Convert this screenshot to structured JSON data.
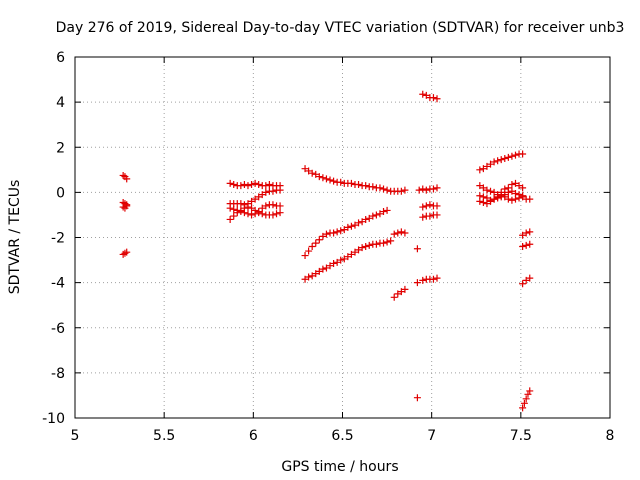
{
  "chart_data": {
    "type": "scatter",
    "title": "Day 276 of 2019, Sidereal Day-to-day VTEC variation (SDTVAR) for receiver unb3",
    "xlabel": "GPS time / hours",
    "ylabel": "SDTVAR / TECUs",
    "xlim": [
      5,
      8
    ],
    "ylim": [
      -10,
      6
    ],
    "xticks": [
      5,
      5.5,
      6,
      6.5,
      7,
      7.5,
      8
    ],
    "yticks": [
      -10,
      -8,
      -6,
      -4,
      -2,
      0,
      2,
      4,
      6
    ],
    "xtick_labels": [
      "5",
      "5.5",
      "6",
      "6.5",
      "7",
      "7.5",
      "8"
    ],
    "ytick_labels": [
      "-10",
      "-8",
      "-6",
      "-4",
      "-2",
      "0",
      "2",
      "4",
      "6"
    ],
    "grid": true,
    "marker": "+",
    "color": "#e00000",
    "series": [
      {
        "name": "cluster-5.3",
        "points": [
          [
            5.27,
            0.75
          ],
          [
            5.28,
            0.7
          ],
          [
            5.29,
            0.6
          ],
          [
            5.27,
            -0.45
          ],
          [
            5.28,
            -0.5
          ],
          [
            5.29,
            -0.55
          ],
          [
            5.27,
            -0.65
          ],
          [
            5.28,
            -0.7
          ],
          [
            5.29,
            -0.6
          ],
          [
            5.27,
            -2.75
          ],
          [
            5.28,
            -2.7
          ],
          [
            5.29,
            -2.65
          ]
        ]
      },
      {
        "name": "arc-6.0-top",
        "points": [
          [
            5.87,
            0.4
          ],
          [
            5.89,
            0.35
          ],
          [
            5.91,
            0.3
          ],
          [
            5.93,
            0.3
          ],
          [
            5.95,
            0.35
          ],
          [
            5.97,
            0.3
          ],
          [
            5.99,
            0.35
          ],
          [
            6.01,
            0.4
          ],
          [
            6.03,
            0.35
          ],
          [
            6.05,
            0.3
          ],
          [
            6.07,
            0.3
          ],
          [
            6.09,
            0.35
          ],
          [
            6.11,
            0.3
          ],
          [
            6.13,
            0.3
          ],
          [
            6.15,
            0.3
          ]
        ]
      },
      {
        "name": "arc-6.0-mid",
        "points": [
          [
            5.87,
            -0.5
          ],
          [
            5.89,
            -0.5
          ],
          [
            5.91,
            -0.5
          ],
          [
            5.93,
            -0.5
          ],
          [
            5.95,
            -0.55
          ],
          [
            5.97,
            -0.5
          ],
          [
            5.99,
            -0.4
          ],
          [
            6.01,
            -0.3
          ],
          [
            6.03,
            -0.2
          ],
          [
            6.05,
            -0.1
          ],
          [
            6.07,
            0.0
          ],
          [
            6.09,
            0.05
          ],
          [
            6.11,
            0.05
          ],
          [
            6.13,
            0.1
          ],
          [
            6.15,
            0.1
          ]
        ]
      },
      {
        "name": "arc-6.0-low",
        "points": [
          [
            5.87,
            -0.7
          ],
          [
            5.89,
            -0.75
          ],
          [
            5.91,
            -0.8
          ],
          [
            5.93,
            -0.85
          ],
          [
            5.95,
            -0.9
          ],
          [
            5.97,
            -0.95
          ],
          [
            5.99,
            -1.0
          ],
          [
            6.01,
            -0.95
          ],
          [
            6.03,
            -0.85
          ],
          [
            6.05,
            -0.7
          ],
          [
            6.07,
            -0.6
          ],
          [
            6.09,
            -0.55
          ],
          [
            6.11,
            -0.55
          ],
          [
            6.13,
            -0.6
          ],
          [
            6.15,
            -0.6
          ]
        ]
      },
      {
        "name": "arc-6.0-cross",
        "points": [
          [
            5.87,
            -1.2
          ],
          [
            5.89,
            -1.05
          ],
          [
            5.91,
            -0.9
          ],
          [
            5.93,
            -0.8
          ],
          [
            5.95,
            -0.7
          ],
          [
            5.97,
            -0.65
          ],
          [
            5.99,
            -0.7
          ],
          [
            6.01,
            -0.8
          ],
          [
            6.03,
            -0.9
          ],
          [
            6.05,
            -0.95
          ],
          [
            6.07,
            -1.0
          ],
          [
            6.09,
            -1.0
          ],
          [
            6.11,
            -1.0
          ],
          [
            6.13,
            -0.95
          ],
          [
            6.15,
            -0.9
          ]
        ]
      },
      {
        "name": "arc-upper",
        "points": [
          [
            6.29,
            1.05
          ],
          [
            6.31,
            0.95
          ],
          [
            6.33,
            0.85
          ],
          [
            6.35,
            0.8
          ],
          [
            6.37,
            0.7
          ],
          [
            6.39,
            0.65
          ],
          [
            6.41,
            0.6
          ],
          [
            6.43,
            0.55
          ],
          [
            6.45,
            0.5
          ],
          [
            6.47,
            0.45
          ],
          [
            6.49,
            0.45
          ],
          [
            6.51,
            0.4
          ],
          [
            6.53,
            0.4
          ],
          [
            6.55,
            0.4
          ],
          [
            6.57,
            0.35
          ],
          [
            6.59,
            0.35
          ],
          [
            6.61,
            0.3
          ],
          [
            6.63,
            0.3
          ],
          [
            6.65,
            0.25
          ],
          [
            6.67,
            0.25
          ],
          [
            6.69,
            0.2
          ],
          [
            6.71,
            0.2
          ],
          [
            6.73,
            0.15
          ],
          [
            6.75,
            0.1
          ],
          [
            6.77,
            0.05
          ],
          [
            6.79,
            0.05
          ],
          [
            6.81,
            0.05
          ],
          [
            6.83,
            0.05
          ],
          [
            6.85,
            0.1
          ]
        ]
      },
      {
        "name": "arc-middle",
        "points": [
          [
            6.29,
            -2.8
          ],
          [
            6.31,
            -2.6
          ],
          [
            6.33,
            -2.4
          ],
          [
            6.35,
            -2.25
          ],
          [
            6.37,
            -2.1
          ],
          [
            6.39,
            -1.95
          ],
          [
            6.41,
            -1.85
          ],
          [
            6.43,
            -1.8
          ],
          [
            6.45,
            -1.8
          ],
          [
            6.47,
            -1.75
          ],
          [
            6.49,
            -1.7
          ],
          [
            6.51,
            -1.65
          ],
          [
            6.53,
            -1.55
          ],
          [
            6.55,
            -1.5
          ],
          [
            6.57,
            -1.45
          ],
          [
            6.59,
            -1.35
          ],
          [
            6.61,
            -1.3
          ],
          [
            6.63,
            -1.2
          ],
          [
            6.65,
            -1.15
          ],
          [
            6.67,
            -1.05
          ],
          [
            6.69,
            -1.0
          ],
          [
            6.71,
            -0.95
          ],
          [
            6.73,
            -0.85
          ],
          [
            6.75,
            -0.8
          ],
          [
            6.79,
            -1.85
          ],
          [
            6.81,
            -1.8
          ],
          [
            6.83,
            -1.75
          ],
          [
            6.85,
            -1.8
          ]
        ]
      },
      {
        "name": "arc-lower",
        "points": [
          [
            6.29,
            -3.85
          ],
          [
            6.31,
            -3.75
          ],
          [
            6.33,
            -3.7
          ],
          [
            6.35,
            -3.6
          ],
          [
            6.37,
            -3.5
          ],
          [
            6.39,
            -3.4
          ],
          [
            6.41,
            -3.35
          ],
          [
            6.43,
            -3.25
          ],
          [
            6.45,
            -3.15
          ],
          [
            6.47,
            -3.1
          ],
          [
            6.49,
            -3.0
          ],
          [
            6.51,
            -2.95
          ],
          [
            6.53,
            -2.85
          ],
          [
            6.55,
            -2.75
          ],
          [
            6.57,
            -2.65
          ],
          [
            6.59,
            -2.55
          ],
          [
            6.61,
            -2.45
          ],
          [
            6.63,
            -2.4
          ],
          [
            6.65,
            -2.35
          ],
          [
            6.67,
            -2.3
          ],
          [
            6.69,
            -2.3
          ],
          [
            6.71,
            -2.25
          ],
          [
            6.73,
            -2.25
          ],
          [
            6.75,
            -2.2
          ],
          [
            6.77,
            -2.15
          ],
          [
            6.79,
            -4.65
          ],
          [
            6.81,
            -4.5
          ],
          [
            6.83,
            -4.4
          ],
          [
            6.85,
            -4.3
          ]
        ]
      },
      {
        "name": "cluster-7.0",
        "points": [
          [
            6.92,
            -9.1
          ],
          [
            6.92,
            -4.0
          ],
          [
            6.92,
            -2.5
          ],
          [
            6.93,
            0.1
          ],
          [
            6.95,
            4.35
          ],
          [
            6.97,
            4.3
          ],
          [
            6.99,
            4.2
          ],
          [
            7.01,
            4.2
          ],
          [
            7.03,
            4.15
          ],
          [
            6.95,
            0.15
          ],
          [
            6.97,
            0.1
          ],
          [
            6.99,
            0.15
          ],
          [
            7.01,
            0.15
          ],
          [
            7.03,
            0.2
          ],
          [
            6.95,
            -0.65
          ],
          [
            6.97,
            -0.6
          ],
          [
            6.99,
            -0.55
          ],
          [
            7.01,
            -0.6
          ],
          [
            7.03,
            -0.6
          ],
          [
            6.95,
            -1.1
          ],
          [
            6.97,
            -1.05
          ],
          [
            6.99,
            -1.05
          ],
          [
            7.01,
            -1.0
          ],
          [
            7.03,
            -1.0
          ],
          [
            6.95,
            -3.9
          ],
          [
            6.97,
            -3.85
          ],
          [
            6.99,
            -3.85
          ],
          [
            7.01,
            -3.85
          ],
          [
            7.03,
            -3.8
          ]
        ]
      },
      {
        "name": "arc-7.4-rise",
        "points": [
          [
            7.27,
            1.0
          ],
          [
            7.29,
            1.05
          ],
          [
            7.31,
            1.15
          ],
          [
            7.33,
            1.25
          ],
          [
            7.35,
            1.35
          ],
          [
            7.37,
            1.4
          ],
          [
            7.39,
            1.45
          ],
          [
            7.41,
            1.5
          ],
          [
            7.43,
            1.55
          ],
          [
            7.45,
            1.6
          ],
          [
            7.47,
            1.65
          ],
          [
            7.49,
            1.7
          ],
          [
            7.51,
            1.7
          ]
        ]
      },
      {
        "name": "arc-7.4-band",
        "points": [
          [
            7.27,
            0.3
          ],
          [
            7.29,
            0.2
          ],
          [
            7.31,
            0.1
          ],
          [
            7.33,
            0.05
          ],
          [
            7.35,
            0.0
          ],
          [
            7.37,
            -0.1
          ],
          [
            7.39,
            0.0
          ],
          [
            7.41,
            0.15
          ],
          [
            7.43,
            0.2
          ],
          [
            7.45,
            0.35
          ],
          [
            7.47,
            0.4
          ],
          [
            7.49,
            0.3
          ],
          [
            7.51,
            0.2
          ],
          [
            7.27,
            -0.15
          ],
          [
            7.29,
            -0.2
          ],
          [
            7.31,
            -0.25
          ],
          [
            7.33,
            -0.35
          ],
          [
            7.35,
            -0.3
          ],
          [
            7.37,
            -0.25
          ],
          [
            7.39,
            -0.2
          ],
          [
            7.41,
            -0.1
          ],
          [
            7.43,
            0.0
          ],
          [
            7.45,
            0.05
          ],
          [
            7.47,
            -0.05
          ],
          [
            7.49,
            -0.1
          ],
          [
            7.51,
            -0.15
          ],
          [
            7.27,
            -0.4
          ],
          [
            7.29,
            -0.45
          ],
          [
            7.31,
            -0.5
          ],
          [
            7.33,
            -0.4
          ],
          [
            7.35,
            -0.3
          ],
          [
            7.37,
            -0.2
          ],
          [
            7.39,
            -0.15
          ],
          [
            7.41,
            -0.2
          ],
          [
            7.43,
            -0.3
          ],
          [
            7.45,
            -0.35
          ],
          [
            7.47,
            -0.3
          ],
          [
            7.49,
            -0.25
          ],
          [
            7.51,
            -0.2
          ],
          [
            7.53,
            -0.3
          ],
          [
            7.55,
            -0.3
          ]
        ]
      },
      {
        "name": "cluster-7.55",
        "points": [
          [
            7.51,
            -1.9
          ],
          [
            7.53,
            -1.8
          ],
          [
            7.55,
            -1.75
          ],
          [
            7.51,
            -2.4
          ],
          [
            7.53,
            -2.35
          ],
          [
            7.55,
            -2.3
          ],
          [
            7.51,
            -4.05
          ],
          [
            7.53,
            -3.9
          ],
          [
            7.55,
            -3.8
          ],
          [
            7.51,
            -9.55
          ],
          [
            7.52,
            -9.35
          ],
          [
            7.53,
            -9.15
          ],
          [
            7.54,
            -8.95
          ],
          [
            7.55,
            -8.8
          ]
        ]
      }
    ]
  }
}
